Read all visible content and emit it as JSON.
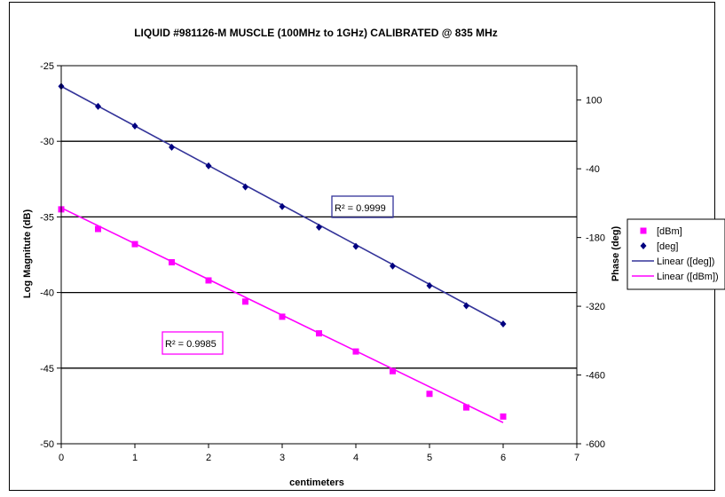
{
  "chart_data": {
    "type": "scatter",
    "title": "LIQUID #981126-M MUSCLE (100MHz to 1GHz) CALIBRATED @ 835 MHz",
    "xlabel": "centimeters",
    "ylabel_left": "Log Magnitute (dB)",
    "ylabel_right": "Phase (deg)",
    "xlim": [
      0,
      7
    ],
    "ylim_left": [
      -50,
      -25
    ],
    "ylim_right": [
      -600,
      170
    ],
    "x_ticks": [
      "0",
      "1",
      "2",
      "3",
      "4",
      "5",
      "6",
      "7"
    ],
    "y_left_ticks": [
      "-25",
      "-30",
      "-35",
      "-40",
      "-45",
      "-50"
    ],
    "y_right_ticks": [
      "100",
      "-40",
      "-180",
      "-320",
      "-460",
      "-600"
    ],
    "grid": "horizontal major lines on left axis",
    "legend_position": "right",
    "x": [
      0,
      0.5,
      1,
      1.5,
      2,
      2.5,
      3,
      3.5,
      4,
      4.5,
      5,
      5.5,
      6
    ],
    "series": [
      {
        "name": "[dBm]",
        "axis": "left",
        "marker": "square",
        "color": "#ff00ff",
        "values": [
          -34.5,
          -35.8,
          -36.8,
          -38.0,
          -39.2,
          -40.6,
          -41.6,
          -42.7,
          -43.9,
          -45.2,
          -46.7,
          -47.6,
          -48.2
        ]
      },
      {
        "name": "[deg]",
        "axis": "right",
        "marker": "diamond",
        "color": "#000080",
        "values": [
          128,
          87,
          47,
          4,
          -34,
          -77,
          -117,
          -159,
          -198,
          -238,
          -278,
          -319,
          -356
        ]
      }
    ],
    "trendlines": [
      {
        "name": "Linear ([deg])",
        "of": "[deg]",
        "color": "#333399",
        "from": [
          0,
          128
        ],
        "to": [
          6,
          -356
        ],
        "r2_label": "R² = 0.9999"
      },
      {
        "name": "Linear ([dBm])",
        "of": "[dBm]",
        "color": "#ff00ff",
        "from": [
          0,
          -34.4
        ],
        "to": [
          6,
          -48.6
        ],
        "r2_label": "R² = 0.9985"
      }
    ]
  }
}
